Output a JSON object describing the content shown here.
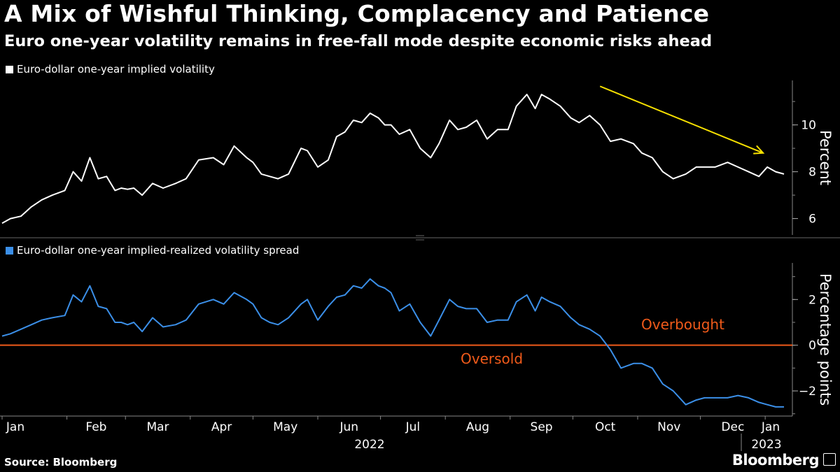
{
  "header": {
    "title": "A Mix of Wishful Thinking, Complacency and Patience",
    "subtitle": "Euro one-year volatility remains in free-fall mode despite economic risks ahead"
  },
  "footer": {
    "source": "Source: Bloomberg",
    "brand": "Bloomberg"
  },
  "colors": {
    "background": "#000000",
    "series1": "#ffffff",
    "series2": "#3b8fe8",
    "zero_line": "#f05a1a",
    "annotation_text": "#f05a1a",
    "trend_arrow": "#f7e100"
  },
  "chart_data": [
    {
      "type": "line",
      "legend": "Euro-dollar one-year implied volatility",
      "ylabel": "Percent",
      "ylim": [
        5.3,
        11.9
      ],
      "yticks": [
        6,
        8,
        10
      ],
      "grid": false,
      "annotation": "yellow downward trend arrow from mid-October to end of December",
      "series": [
        {
          "name": "Euro-dollar one-year implied volatility",
          "x": [
            "2022-01-01",
            "2022-01-05",
            "2022-01-10",
            "2022-01-15",
            "2022-01-20",
            "2022-01-25",
            "2022-01-31",
            "2022-02-04",
            "2022-02-08",
            "2022-02-12",
            "2022-02-16",
            "2022-02-20",
            "2022-02-24",
            "2022-02-27",
            "2022-03-02",
            "2022-03-05",
            "2022-03-09",
            "2022-03-14",
            "2022-03-19",
            "2022-03-25",
            "2022-03-30",
            "2022-04-05",
            "2022-04-12",
            "2022-04-17",
            "2022-04-22",
            "2022-04-28",
            "2022-05-01",
            "2022-05-05",
            "2022-05-09",
            "2022-05-13",
            "2022-05-18",
            "2022-05-24",
            "2022-05-27",
            "2022-06-01",
            "2022-06-06",
            "2022-06-10",
            "2022-06-14",
            "2022-06-18",
            "2022-06-22",
            "2022-06-26",
            "2022-06-30",
            "2022-07-03",
            "2022-07-06",
            "2022-07-10",
            "2022-07-15",
            "2022-07-20",
            "2022-07-25",
            "2022-07-29",
            "2022-08-03",
            "2022-08-07",
            "2022-08-11",
            "2022-08-16",
            "2022-08-21",
            "2022-08-26",
            "2022-08-31",
            "2022-09-04",
            "2022-09-09",
            "2022-09-13",
            "2022-09-16",
            "2022-09-20",
            "2022-09-25",
            "2022-09-30",
            "2022-10-04",
            "2022-10-09",
            "2022-10-14",
            "2022-10-19",
            "2022-10-24",
            "2022-10-30",
            "2022-11-03",
            "2022-11-08",
            "2022-11-13",
            "2022-11-18",
            "2022-11-24",
            "2022-11-29",
            "2022-12-03",
            "2022-12-08",
            "2022-12-14",
            "2022-12-19",
            "2022-12-24",
            "2022-12-29",
            "2023-01-02",
            "2023-01-06",
            "2023-01-10"
          ],
          "y": [
            5.8,
            6.0,
            6.1,
            6.5,
            6.8,
            7.0,
            7.2,
            8.0,
            7.6,
            8.6,
            7.7,
            7.8,
            7.2,
            7.3,
            7.25,
            7.3,
            7.0,
            7.5,
            7.3,
            7.5,
            7.7,
            8.5,
            8.6,
            8.3,
            9.1,
            8.6,
            8.4,
            7.9,
            7.8,
            7.7,
            7.9,
            9.0,
            8.9,
            8.2,
            8.5,
            9.5,
            9.7,
            10.2,
            10.1,
            10.5,
            10.3,
            10.0,
            10.0,
            9.6,
            9.8,
            9.0,
            8.6,
            9.2,
            10.2,
            9.8,
            9.9,
            10.2,
            9.4,
            9.8,
            9.8,
            10.8,
            11.3,
            10.7,
            11.3,
            11.1,
            10.8,
            10.3,
            10.1,
            10.4,
            10.0,
            9.3,
            9.4,
            9.2,
            8.8,
            8.6,
            8.0,
            7.7,
            7.9,
            8.2,
            8.2,
            8.2,
            8.4,
            8.2,
            8.0,
            7.8,
            8.2,
            8.0,
            7.9
          ]
        }
      ]
    },
    {
      "type": "line",
      "legend": "Euro-dollar one-year implied-realized volatility spread",
      "ylabel": "Percentage points",
      "ylim": [
        -3.1,
        3.6
      ],
      "yticks": [
        -2,
        0,
        2
      ],
      "grid": false,
      "reference_line": 0,
      "annotations": [
        "Overbought",
        "Oversold"
      ],
      "series": [
        {
          "name": "Euro-dollar one-year implied-realized volatility spread",
          "x": [
            "2022-01-01",
            "2022-01-05",
            "2022-01-10",
            "2022-01-15",
            "2022-01-20",
            "2022-01-25",
            "2022-01-31",
            "2022-02-04",
            "2022-02-08",
            "2022-02-12",
            "2022-02-16",
            "2022-02-20",
            "2022-02-24",
            "2022-02-27",
            "2022-03-02",
            "2022-03-05",
            "2022-03-09",
            "2022-03-14",
            "2022-03-19",
            "2022-03-25",
            "2022-03-30",
            "2022-04-05",
            "2022-04-12",
            "2022-04-17",
            "2022-04-22",
            "2022-04-28",
            "2022-05-01",
            "2022-05-05",
            "2022-05-09",
            "2022-05-13",
            "2022-05-18",
            "2022-05-24",
            "2022-05-27",
            "2022-06-01",
            "2022-06-06",
            "2022-06-10",
            "2022-06-14",
            "2022-06-18",
            "2022-06-22",
            "2022-06-26",
            "2022-06-30",
            "2022-07-03",
            "2022-07-06",
            "2022-07-10",
            "2022-07-15",
            "2022-07-20",
            "2022-07-25",
            "2022-07-29",
            "2022-08-03",
            "2022-08-07",
            "2022-08-11",
            "2022-08-16",
            "2022-08-21",
            "2022-08-26",
            "2022-08-31",
            "2022-09-04",
            "2022-09-09",
            "2022-09-13",
            "2022-09-16",
            "2022-09-20",
            "2022-09-25",
            "2022-09-30",
            "2022-10-04",
            "2022-10-09",
            "2022-10-14",
            "2022-10-19",
            "2022-10-24",
            "2022-10-30",
            "2022-11-03",
            "2022-11-08",
            "2022-11-13",
            "2022-11-18",
            "2022-11-24",
            "2022-11-29",
            "2022-12-03",
            "2022-12-08",
            "2022-12-14",
            "2022-12-19",
            "2022-12-24",
            "2022-12-29",
            "2023-01-02",
            "2023-01-06",
            "2023-01-10"
          ],
          "y": [
            0.4,
            0.5,
            0.7,
            0.9,
            1.1,
            1.2,
            1.3,
            2.2,
            1.9,
            2.6,
            1.7,
            1.6,
            1.0,
            1.0,
            0.9,
            1.0,
            0.6,
            1.2,
            0.8,
            0.9,
            1.1,
            1.8,
            2.0,
            1.8,
            2.3,
            2.0,
            1.8,
            1.2,
            1.0,
            0.9,
            1.2,
            1.8,
            2.0,
            1.1,
            1.7,
            2.1,
            2.2,
            2.6,
            2.5,
            2.9,
            2.6,
            2.5,
            2.3,
            1.5,
            1.8,
            1.0,
            0.4,
            1.1,
            2.0,
            1.7,
            1.6,
            1.6,
            1.0,
            1.1,
            1.1,
            1.9,
            2.2,
            1.5,
            2.1,
            1.9,
            1.7,
            1.2,
            0.9,
            0.7,
            0.4,
            -0.2,
            -1.0,
            -0.8,
            -0.8,
            -1.0,
            -1.7,
            -2.0,
            -2.6,
            -2.4,
            -2.3,
            -2.3,
            -2.3,
            -2.2,
            -2.3,
            -2.5,
            -2.6,
            -2.7,
            -2.7
          ]
        }
      ]
    }
  ],
  "x_axis": {
    "months": [
      "Jan",
      "Feb",
      "Mar",
      "Apr",
      "May",
      "Jun",
      "Jul",
      "Aug",
      "Sep",
      "Oct",
      "Nov",
      "Dec",
      "Jan"
    ],
    "years": [
      "2022",
      "2023"
    ]
  }
}
